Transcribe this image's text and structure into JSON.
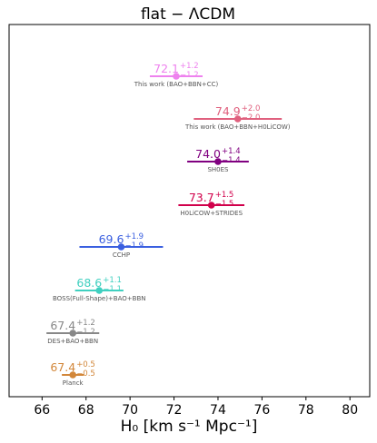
{
  "chart_data": {
    "type": "scatter",
    "title": "flat − ΛCDM",
    "xlabel": "H₀ [km s⁻¹ Mpc⁻¹]",
    "xlim": [
      64.5,
      80.9
    ],
    "xticks": [
      66,
      68,
      70,
      72,
      74,
      76,
      78,
      80
    ],
    "grid": false,
    "points": [
      {
        "label": "This work (BAO+BBN+CC)",
        "value": 72.1,
        "plus": 1.2,
        "minus": 1.2,
        "value_text": "72.1",
        "plus_text": "+1.2",
        "minus_text": "−1.2",
        "color": "#ee82ee"
      },
      {
        "label": "This work (BAO+BBN+H0LiCOW)",
        "value": 74.9,
        "plus": 2.0,
        "minus": 2.0,
        "value_text": "74.9",
        "plus_text": "+2.0",
        "minus_text": "−2.0",
        "color": "#e0607e"
      },
      {
        "label": "SH0ES",
        "value": 74.0,
        "plus": 1.4,
        "minus": 1.4,
        "value_text": "74.0",
        "plus_text": "+1.4",
        "minus_text": "−1.4",
        "color": "#800080"
      },
      {
        "label": "H0LiCOW+STRIDES",
        "value": 73.7,
        "plus": 1.5,
        "minus": 1.5,
        "value_text": "73.7",
        "plus_text": "+1.5",
        "minus_text": "−1.5",
        "color": "#d1004b"
      },
      {
        "label": "CCHP",
        "value": 69.6,
        "plus": 1.9,
        "minus": 1.9,
        "value_text": "69.6",
        "plus_text": "+1.9",
        "minus_text": "−1.9",
        "color": "#3a5fe0"
      },
      {
        "label": "BOSS(Full-Shape)+BAO+BBN",
        "value": 68.6,
        "plus": 1.1,
        "minus": 1.1,
        "value_text": "68.6",
        "plus_text": "+1.1",
        "minus_text": "−1.1",
        "color": "#40d0c0"
      },
      {
        "label": "DES+BAO+BBN",
        "value": 67.4,
        "plus": 1.2,
        "minus": 1.2,
        "value_text": "67.4",
        "plus_text": "+1.2",
        "minus_text": "−1.2",
        "color": "#888888"
      },
      {
        "label": "Planck",
        "value": 67.4,
        "plus": 0.5,
        "minus": 0.5,
        "value_text": "67.4",
        "plus_text": "+0.5",
        "minus_text": "−0.5",
        "color": "#d2873a"
      }
    ]
  }
}
